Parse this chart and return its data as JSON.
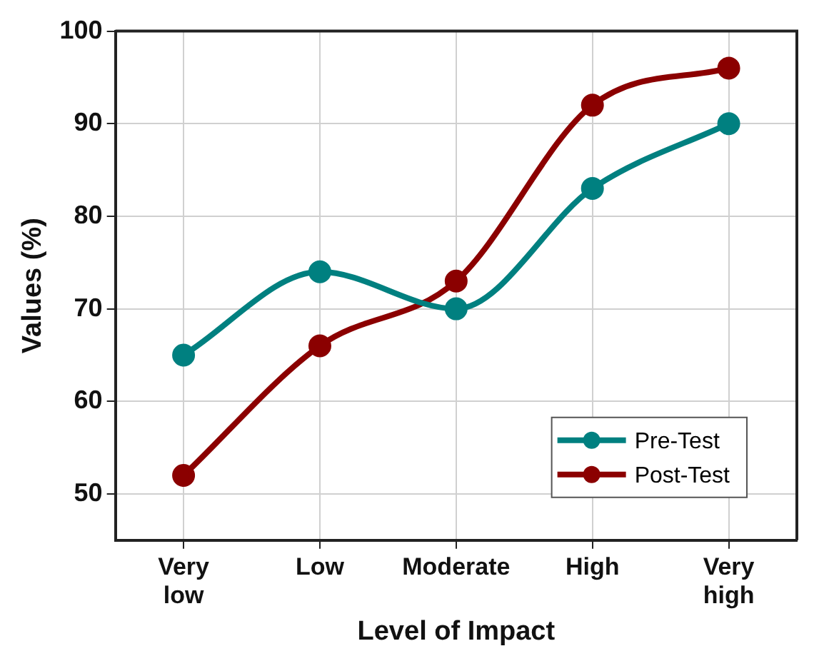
{
  "chart_data": {
    "type": "line",
    "xlabel": "Level of Impact",
    "ylabel": "Values (%)",
    "categories": [
      "Very low",
      "Low",
      "Moderate",
      "High",
      "Very high"
    ],
    "series": [
      {
        "name": "Pre-Test",
        "color": "#008080",
        "values": [
          65,
          74,
          70,
          83,
          90
        ]
      },
      {
        "name": "Post-Test",
        "color": "#8b0000",
        "values": [
          52,
          66,
          73,
          92,
          96
        ]
      }
    ],
    "ylim": [
      45,
      100
    ],
    "yticks": [
      50,
      60,
      70,
      80,
      90,
      100
    ],
    "grid": true,
    "legend": "bottom right",
    "marker": "circle",
    "line_style": "solid"
  }
}
